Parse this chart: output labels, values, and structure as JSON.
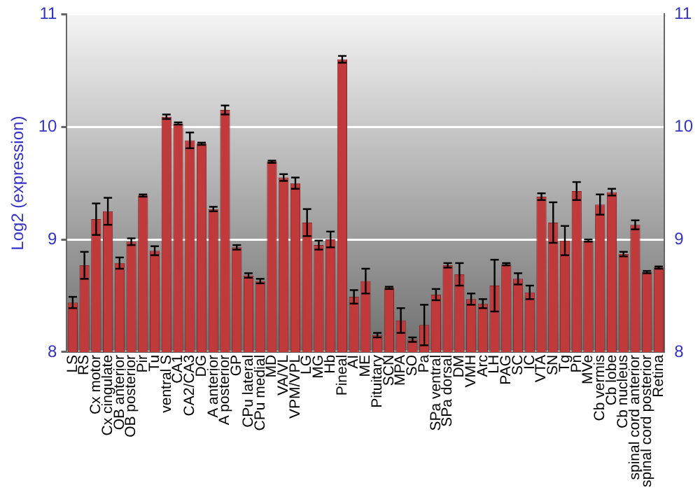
{
  "chart_data": {
    "type": "bar",
    "ylabel": "Log2 (expression)",
    "categories": [
      "LS",
      "RS",
      "Cx motor",
      "Cx cingulate",
      "OB anterior",
      "OB posterior",
      "Pir",
      "Tu",
      "ventral S",
      "CA1",
      "CA2/CA3",
      "DG",
      "A anterior",
      "A posterior",
      "GP",
      "CPu lateral",
      "CPu medial",
      "MD",
      "VA/VL",
      "VPM/VPL",
      "LG",
      "MG",
      "Hb",
      "Pineal",
      "AI",
      "ME",
      "Pituitary",
      "SCN",
      "MPA",
      "SO",
      "Pa",
      "SPa ventral",
      "SPa dorsal",
      "DM",
      "VMH",
      "Arc",
      "LH",
      "PAG",
      "SC",
      "IC",
      "VTA",
      "SN",
      "Tg",
      "Pn",
      "MVe",
      "Cb vermis",
      "Cb lobe",
      "Cb nucleus",
      "spinal cord anterior",
      "spinal cord posterior",
      "Retina"
    ],
    "values": [
      8.44,
      8.77,
      9.18,
      9.25,
      8.79,
      8.98,
      9.39,
      8.9,
      10.09,
      10.03,
      9.88,
      9.85,
      9.27,
      10.15,
      8.93,
      8.68,
      8.63,
      9.69,
      9.55,
      9.5,
      9.15,
      8.95,
      9.0,
      10.6,
      8.49,
      8.63,
      8.15,
      8.57,
      8.28,
      8.11,
      8.24,
      8.51,
      8.77,
      8.69,
      8.47,
      8.43,
      8.59,
      8.78,
      8.65,
      8.53,
      9.38,
      9.15,
      8.99,
      9.43,
      8.99,
      9.31,
      9.42,
      8.87,
      9.13,
      8.71,
      8.75
    ],
    "errors": [
      0.05,
      0.12,
      0.14,
      0.12,
      0.05,
      0.03,
      0.01,
      0.04,
      0.02,
      0.01,
      0.07,
      0.01,
      0.02,
      0.04,
      0.02,
      0.02,
      0.02,
      0.01,
      0.03,
      0.05,
      0.12,
      0.04,
      0.07,
      0.03,
      0.06,
      0.11,
      0.02,
      0.01,
      0.11,
      0.02,
      0.18,
      0.05,
      0.02,
      0.1,
      0.05,
      0.04,
      0.23,
      0.01,
      0.05,
      0.06,
      0.03,
      0.18,
      0.13,
      0.08,
      0.01,
      0.09,
      0.03,
      0.02,
      0.04,
      0.01,
      0.01
    ],
    "color": "#c0393b",
    "ylim": [
      8,
      11
    ],
    "yticks": [
      8,
      9,
      10,
      11
    ],
    "y2lim": [
      8,
      11
    ],
    "y2ticks": [
      8,
      9,
      10,
      11
    ],
    "grid": "y",
    "legend": false
  }
}
